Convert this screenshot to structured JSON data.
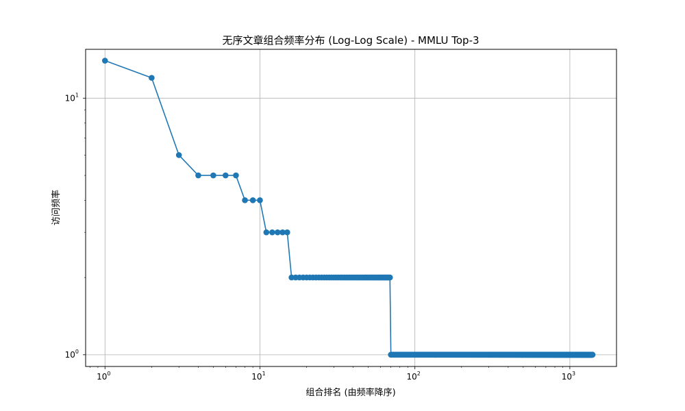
{
  "chart_data": {
    "type": "line",
    "title": "无序文章组合频率分布 (Log-Log Scale) - MMLU Top-3",
    "xlabel": "组合排名 (由频率降序)",
    "ylabel": "访问频率",
    "xscale": "log",
    "yscale": "log",
    "xlim": [
      0.75,
      2000
    ],
    "ylim": [
      0.9,
      15.5
    ],
    "grid": true,
    "x_ticks": [
      {
        "base": "10",
        "exp": "0",
        "value": 1
      },
      {
        "base": "10",
        "exp": "1",
        "value": 10
      },
      {
        "base": "10",
        "exp": "2",
        "value": 100
      },
      {
        "base": "10",
        "exp": "3",
        "value": 1000
      }
    ],
    "y_ticks": [
      {
        "base": "10",
        "exp": "0",
        "value": 1
      },
      {
        "base": "10",
        "exp": "1",
        "value": 10
      }
    ],
    "series": [
      {
        "color": "#1f77b4",
        "marker": "circle",
        "segments": [
          {
            "from_rank": 1,
            "to_rank": 1,
            "value": 14
          },
          {
            "from_rank": 2,
            "to_rank": 2,
            "value": 12
          },
          {
            "from_rank": 3,
            "to_rank": 3,
            "value": 6
          },
          {
            "from_rank": 4,
            "to_rank": 7,
            "value": 5
          },
          {
            "from_rank": 8,
            "to_rank": 10,
            "value": 4
          },
          {
            "from_rank": 11,
            "to_rank": 15,
            "value": 3
          },
          {
            "from_rank": 16,
            "to_rank": 69,
            "value": 2
          },
          {
            "from_rank": 70,
            "to_rank": 1400,
            "value": 1
          }
        ]
      }
    ]
  }
}
